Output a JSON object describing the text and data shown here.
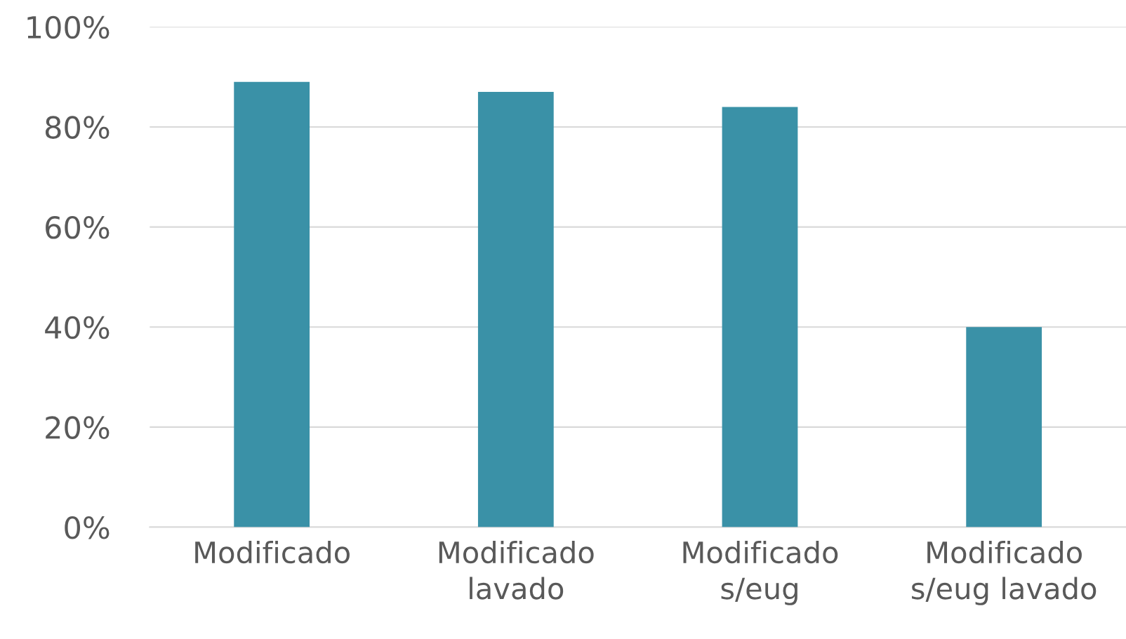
{
  "chart_data": {
    "type": "bar",
    "categories": [
      "Modificado",
      "Modificado\nlavado",
      "Modificado\ns/eug",
      "Modificado\ns/eug lavado"
    ],
    "values": [
      89,
      87,
      84,
      40
    ],
    "color": "#3a91a7",
    "ylim": [
      0,
      100
    ],
    "yticks": [
      {
        "value": 0,
        "label": "0%"
      },
      {
        "value": 20,
        "label": "20%"
      },
      {
        "value": 40,
        "label": "40%"
      },
      {
        "value": 60,
        "label": "60%"
      },
      {
        "value": 80,
        "label": "80%"
      },
      {
        "value": 100,
        "label": "100%"
      }
    ],
    "grid": "y"
  }
}
